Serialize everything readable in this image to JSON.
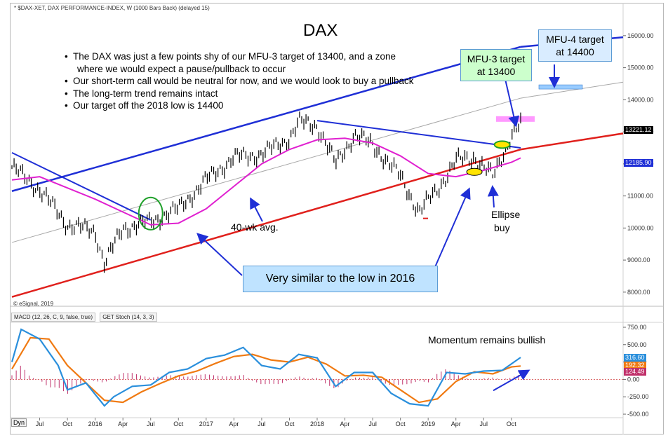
{
  "header": "* $DAX-XET, DAX PERFORMANCE-INDEX, W (1000 Bars Back) (delayed 15)",
  "title": "DAX",
  "bullets": [
    "The DAX was just a few points shy of our MFU-3 target of 13400, and a zone",
    "where we would expect a pause/pullback to occur",
    "Our short-term call would be neutral for now, and we would look to buy a pullback",
    "The long-term trend remains intact",
    "Our target off the 2018 low is 14400"
  ],
  "callouts": {
    "mfu3_line1": "MFU-3 target",
    "mfu3_line2": "at 13400",
    "mfu4_line1": "MFU-4 target",
    "mfu4_line2": "at 14400",
    "similar": "Very similar to the low in 2016",
    "ma_label": "40-wk avg.",
    "ellipse_line1": "Ellipse",
    "ellipse_line2": "buy",
    "momentum": "Momentum remains bullish"
  },
  "copyright": "© eSignal, 2019",
  "indicator_tabs": [
    "MACD (12, 26, C, 9, false, true)",
    "GET Stoch (14, 3, 3)"
  ],
  "dyn_label": "Dyn",
  "last_price_labels": {
    "close": "13221.12",
    "ma": "12185.90",
    "macd1": "316.60",
    "macd2": "192.32",
    "macd3": "124.49"
  },
  "colors": {
    "price_bars": "#000000",
    "moving_average": "#e020d0",
    "upper_channel": "#1f2fd6",
    "lower_channel": "#e0201c",
    "regression_line": "#a8a8a8",
    "macd_line": "#2a8fdc",
    "signal_line": "#f07a12",
    "histogram": "#c0306a",
    "zero_line": "#d04040",
    "target_mfu3": "#ff99ff",
    "target_mfu4": "#99ccff"
  },
  "chart_data": [
    {
      "type": "line",
      "title": "DAX",
      "x_tick_labels": [
        "Jul",
        "Oct",
        "2016",
        "Apr",
        "Jul",
        "Oct",
        "2017",
        "Apr",
        "Jul",
        "Oct",
        "2018",
        "Apr",
        "Jul",
        "Oct",
        "2019",
        "Apr",
        "Jul",
        "Oct"
      ],
      "y_tick_labels": [
        "8000.00",
        "9000.00",
        "10000.00",
        "11000.00",
        "12000.00",
        "13000.00",
        "14000.00",
        "15000.00",
        "16000.00"
      ],
      "ylim": [
        7800,
        16500
      ],
      "x_range": [
        "2015-04",
        "2019-11"
      ],
      "series": [
        {
          "name": "40-wk avg.",
          "x": [
            "2015-04",
            "2015-07",
            "2015-10",
            "2016-01",
            "2016-04",
            "2016-07",
            "2016-10",
            "2017-01",
            "2017-04",
            "2017-07",
            "2017-10",
            "2018-01",
            "2018-04",
            "2018-07",
            "2018-10",
            "2019-01",
            "2019-04",
            "2019-07",
            "2019-10",
            "2019-11"
          ],
          "values": [
            11500,
            11600,
            11250,
            10900,
            10500,
            10100,
            10150,
            10600,
            11300,
            12000,
            12450,
            12750,
            12800,
            12650,
            12250,
            11700,
            11600,
            11800,
            12050,
            12185.9
          ]
        },
        {
          "name": "",
          "x": [
            "2015-04",
            "2015-07",
            "2015-10",
            "2016-01",
            "2016-02",
            "2016-04",
            "2016-07",
            "2016-10",
            "2017-01",
            "2017-04",
            "2017-07",
            "2017-10",
            "2017-11",
            "2018-01",
            "2018-03",
            "2018-05",
            "2018-07",
            "2018-10",
            "2018-12",
            "2019-02",
            "2019-04",
            "2019-06",
            "2019-08",
            "2019-10",
            "2019-11"
          ],
          "values": [
            11900,
            11200,
            10100,
            9900,
            8900,
            10000,
            10200,
            10600,
            11500,
            12200,
            12300,
            12800,
            13300,
            13200,
            12000,
            12900,
            12600,
            11600,
            10500,
            11200,
            12100,
            12200,
            11600,
            12900,
            13221.12
          ]
        }
      ],
      "trendlines": [
        {
          "name": "upper channel",
          "from": [
            "2015-04",
            11150
          ],
          "to": [
            "2019-11",
            15650
          ]
        },
        {
          "name": "lower channel",
          "from": [
            "2015-04",
            7850
          ],
          "to": [
            "2019-11",
            12450
          ]
        },
        {
          "name": "regression",
          "from": [
            "2015-04",
            9550
          ],
          "to": [
            "2019-11",
            14050
          ]
        },
        {
          "name": "downtrend 2015",
          "from": [
            "2015-04",
            12350
          ],
          "to": [
            "2016-07",
            10250
          ]
        },
        {
          "name": "downtrend 2018",
          "from": [
            "2018-01",
            13350
          ],
          "to": [
            "2019-11",
            12500
          ]
        }
      ],
      "target_zones": [
        {
          "name": "MFU-3 target",
          "level": 13400
        },
        {
          "name": "MFU-4 target",
          "level": 14400
        }
      ]
    },
    {
      "type": "line",
      "title": "MACD (12, 26, C, 9, false, true)",
      "y_tick_labels": [
        "-500.00",
        "-250.00",
        "0.00",
        "250.00",
        "500.00",
        "750.00"
      ],
      "ylim": [
        -520,
        790
      ],
      "series": [
        {
          "name": "",
          "x": [
            "2015-04",
            "2015-05",
            "2015-07",
            "2015-09",
            "2015-10",
            "2015-12",
            "2016-02",
            "2016-03",
            "2016-05",
            "2016-07",
            "2016-09",
            "2016-11",
            "2017-01",
            "2017-03",
            "2017-05",
            "2017-07",
            "2017-09",
            "2017-11",
            "2018-01",
            "2018-03",
            "2018-05",
            "2018-07",
            "2018-09",
            "2018-11",
            "2019-01",
            "2019-03",
            "2019-05",
            "2019-07",
            "2019-09",
            "2019-11"
          ],
          "values": [
            250,
            720,
            580,
            200,
            -150,
            -50,
            -380,
            -250,
            -100,
            -80,
            100,
            150,
            300,
            350,
            460,
            200,
            150,
            360,
            310,
            -100,
            100,
            100,
            -200,
            -350,
            -380,
            100,
            80,
            120,
            130,
            316.6
          ]
        },
        {
          "name": "",
          "x": [
            "2015-04",
            "2015-06",
            "2015-08",
            "2015-10",
            "2015-12",
            "2016-02",
            "2016-04",
            "2016-06",
            "2016-08",
            "2016-10",
            "2016-12",
            "2017-02",
            "2017-04",
            "2017-06",
            "2017-08",
            "2017-10",
            "2017-12",
            "2018-02",
            "2018-04",
            "2018-06",
            "2018-08",
            "2018-10",
            "2018-12",
            "2019-02",
            "2019-04",
            "2019-06",
            "2019-08",
            "2019-10",
            "2019-11"
          ],
          "values": [
            150,
            600,
            580,
            200,
            -50,
            -300,
            -330,
            -180,
            -60,
            50,
            120,
            230,
            330,
            360,
            280,
            250,
            320,
            220,
            50,
            60,
            30,
            -150,
            -330,
            -280,
            -30,
            110,
            80,
            180,
            192.32
          ]
        }
      ]
    }
  ]
}
